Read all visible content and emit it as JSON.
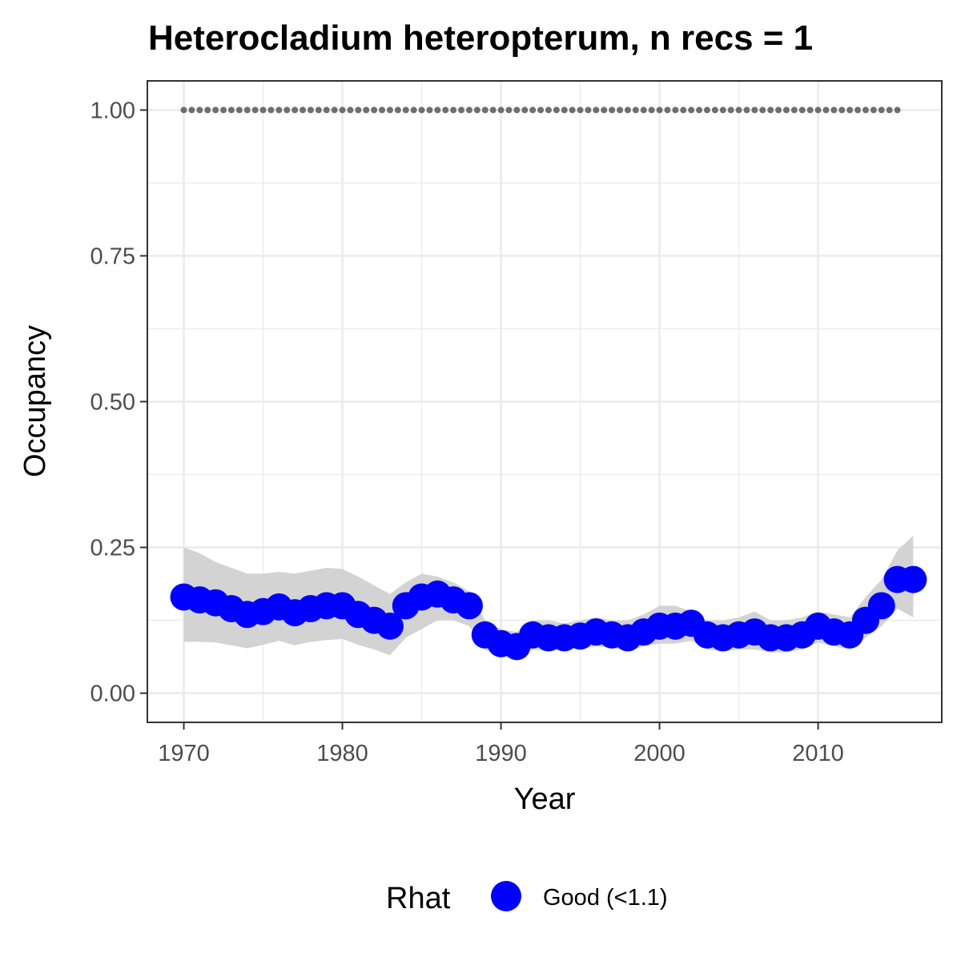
{
  "chart_data": {
    "type": "line",
    "title": "Heterocladium heteropterum, n recs = 1",
    "xlabel": "Year",
    "ylabel": "Occupancy",
    "xlim": [
      1967.7,
      2017.8
    ],
    "ylim": [
      -0.05,
      1.05
    ],
    "x_ticks": [
      1970,
      1980,
      1990,
      2000,
      2010
    ],
    "x_tick_labels": [
      "1970",
      "1980",
      "1990",
      "2000",
      "2010"
    ],
    "y_ticks": [
      0,
      0.25,
      0.5,
      0.75,
      1.0
    ],
    "y_tick_labels": [
      "0.00",
      "0.25",
      "0.50",
      "0.75",
      "1.00"
    ],
    "grid": true,
    "legend": {
      "position": "bottom",
      "title": "Rhat",
      "entries": [
        {
          "label": "Good (<1.1)",
          "color": "#0000ff"
        }
      ]
    },
    "colors": {
      "points": "#0000ff",
      "ribbon": "#d3d3d3",
      "reference_dots": "#6e6e6e",
      "grid": "#ebebeb",
      "panel_border": "#333333"
    },
    "x": [
      1970,
      1971,
      1972,
      1973,
      1974,
      1975,
      1976,
      1977,
      1978,
      1979,
      1980,
      1981,
      1982,
      1983,
      1984,
      1985,
      1986,
      1987,
      1988,
      1989,
      1990,
      1991,
      1992,
      1993,
      1994,
      1995,
      1996,
      1997,
      1998,
      1999,
      2000,
      2001,
      2002,
      2003,
      2004,
      2005,
      2006,
      2007,
      2008,
      2009,
      2010,
      2011,
      2012,
      2013,
      2014,
      2015,
      2016
    ],
    "series": [
      {
        "values": [
          0.165,
          0.16,
          0.155,
          0.145,
          0.135,
          0.14,
          0.148,
          0.138,
          0.145,
          0.15,
          0.15,
          0.135,
          0.125,
          0.115,
          0.15,
          0.165,
          0.17,
          0.16,
          0.15,
          0.1,
          0.085,
          0.08,
          0.1,
          0.095,
          0.095,
          0.098,
          0.105,
          0.1,
          0.095,
          0.105,
          0.115,
          0.115,
          0.12,
          0.1,
          0.095,
          0.1,
          0.105,
          0.095,
          0.095,
          0.1,
          0.115,
          0.105,
          0.1,
          0.125,
          0.15,
          0.195,
          0.195
        ]
      }
    ],
    "ribbon": {
      "x": [
        1970,
        1971,
        1972,
        1973,
        1974,
        1975,
        1976,
        1977,
        1978,
        1979,
        1980,
        1981,
        1982,
        1983,
        1984,
        1985,
        1986,
        1987,
        1988,
        1989,
        1990,
        1991,
        1992,
        1993,
        1994,
        1995,
        1996,
        1997,
        1998,
        1999,
        2000,
        2001,
        2002,
        2003,
        2004,
        2005,
        2006,
        2007,
        2008,
        2009,
        2010,
        2011,
        2012,
        2013,
        2014,
        2015,
        2016
      ],
      "upper": [
        0.25,
        0.24,
        0.225,
        0.215,
        0.205,
        0.205,
        0.208,
        0.205,
        0.21,
        0.215,
        0.213,
        0.2,
        0.185,
        0.17,
        0.19,
        0.205,
        0.2,
        0.19,
        0.175,
        0.125,
        0.11,
        0.105,
        0.125,
        0.125,
        0.12,
        0.125,
        0.13,
        0.125,
        0.125,
        0.135,
        0.15,
        0.15,
        0.14,
        0.125,
        0.125,
        0.13,
        0.14,
        0.125,
        0.125,
        0.13,
        0.14,
        0.135,
        0.13,
        0.165,
        0.195,
        0.245,
        0.27
      ],
      "lower": [
        0.088,
        0.088,
        0.087,
        0.082,
        0.077,
        0.083,
        0.09,
        0.082,
        0.088,
        0.091,
        0.093,
        0.083,
        0.075,
        0.065,
        0.095,
        0.11,
        0.125,
        0.125,
        0.115,
        0.075,
        0.062,
        0.06,
        0.075,
        0.072,
        0.075,
        0.076,
        0.08,
        0.078,
        0.072,
        0.08,
        0.085,
        0.085,
        0.09,
        0.075,
        0.072,
        0.075,
        0.075,
        0.07,
        0.07,
        0.075,
        0.087,
        0.08,
        0.075,
        0.095,
        0.115,
        0.145,
        0.13
      ]
    },
    "reference_line": {
      "x_start": 1970,
      "x_end": 2015,
      "y": 1.0
    }
  }
}
